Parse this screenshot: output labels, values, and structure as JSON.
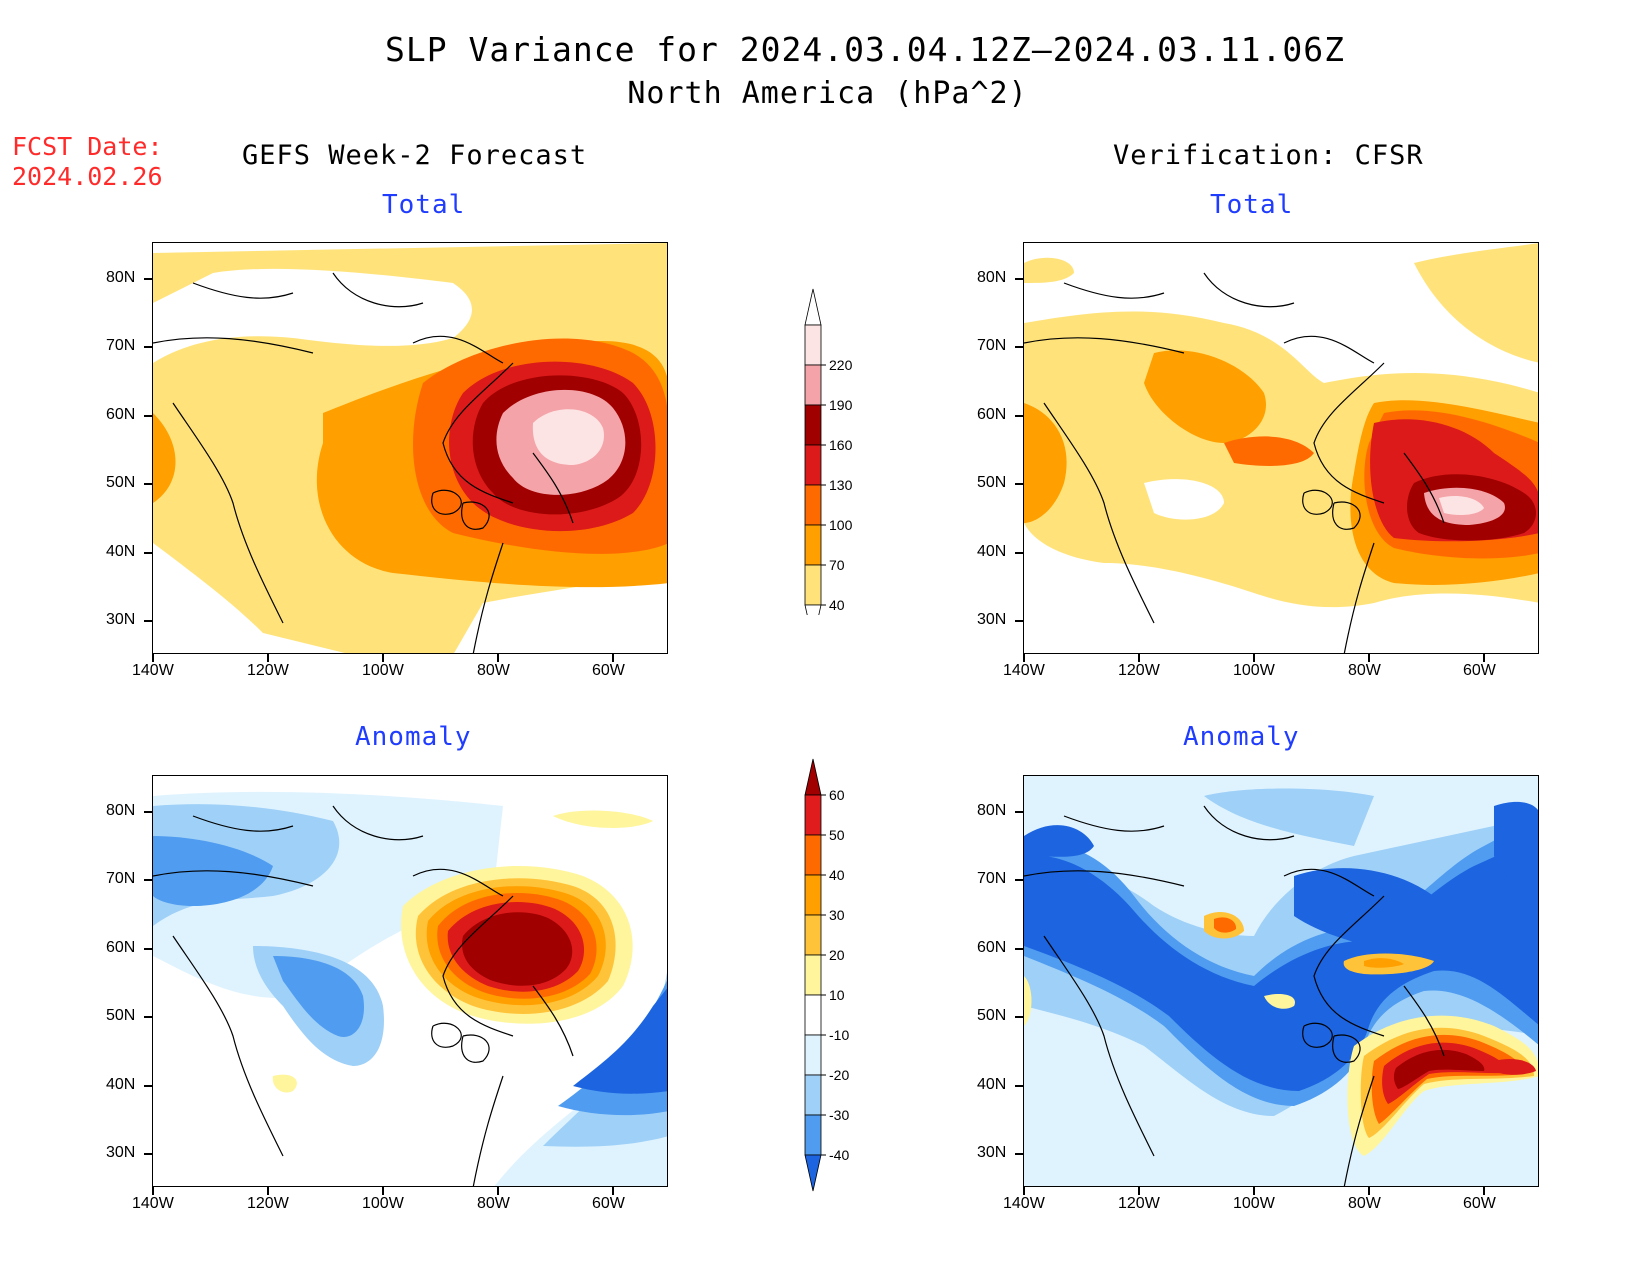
{
  "header": {
    "title": "SLP Variance for 2024.03.04.12Z–2024.03.11.06Z",
    "subtitle": "North America (hPa^2)",
    "fcst_label": "FCST Date:",
    "fcst_date": "2024.02.26"
  },
  "columns": {
    "left": "GEFS Week-2 Forecast",
    "right": "Verification: CFSR"
  },
  "panels": [
    {
      "id": "fcst-total",
      "subtitle": "Total"
    },
    {
      "id": "verif-total",
      "subtitle": "Total"
    },
    {
      "id": "fcst-anomaly",
      "subtitle": "Anomaly"
    },
    {
      "id": "verif-anomaly",
      "subtitle": "Anomaly"
    }
  ],
  "axes": {
    "lat_ticks": [
      "80N",
      "70N",
      "60N",
      "50N",
      "40N",
      "30N"
    ],
    "lon_ticks": [
      "140W",
      "120W",
      "100W",
      "80W",
      "60W"
    ]
  },
  "colorbars": {
    "total": {
      "labels": [
        "220",
        "190",
        "160",
        "130",
        "100",
        "70",
        "40"
      ],
      "colors": [
        "#fde4e4",
        "#f4a3a8",
        "#a00000",
        "#dc1a1a",
        "#ff6a00",
        "#ff9f00",
        "#ffe37a"
      ]
    },
    "anomaly": {
      "labels": [
        "60",
        "50",
        "40",
        "30",
        "20",
        "10",
        "-10",
        "-20",
        "-30",
        "-40"
      ],
      "colors": [
        "#a00000",
        "#e01c1c",
        "#ff6a00",
        "#ff9f00",
        "#ffc33a",
        "#fff59d",
        "#ffffff",
        "#dff3ff",
        "#9fd0f7",
        "#4f9cf0",
        "#1c64e0"
      ]
    }
  }
}
